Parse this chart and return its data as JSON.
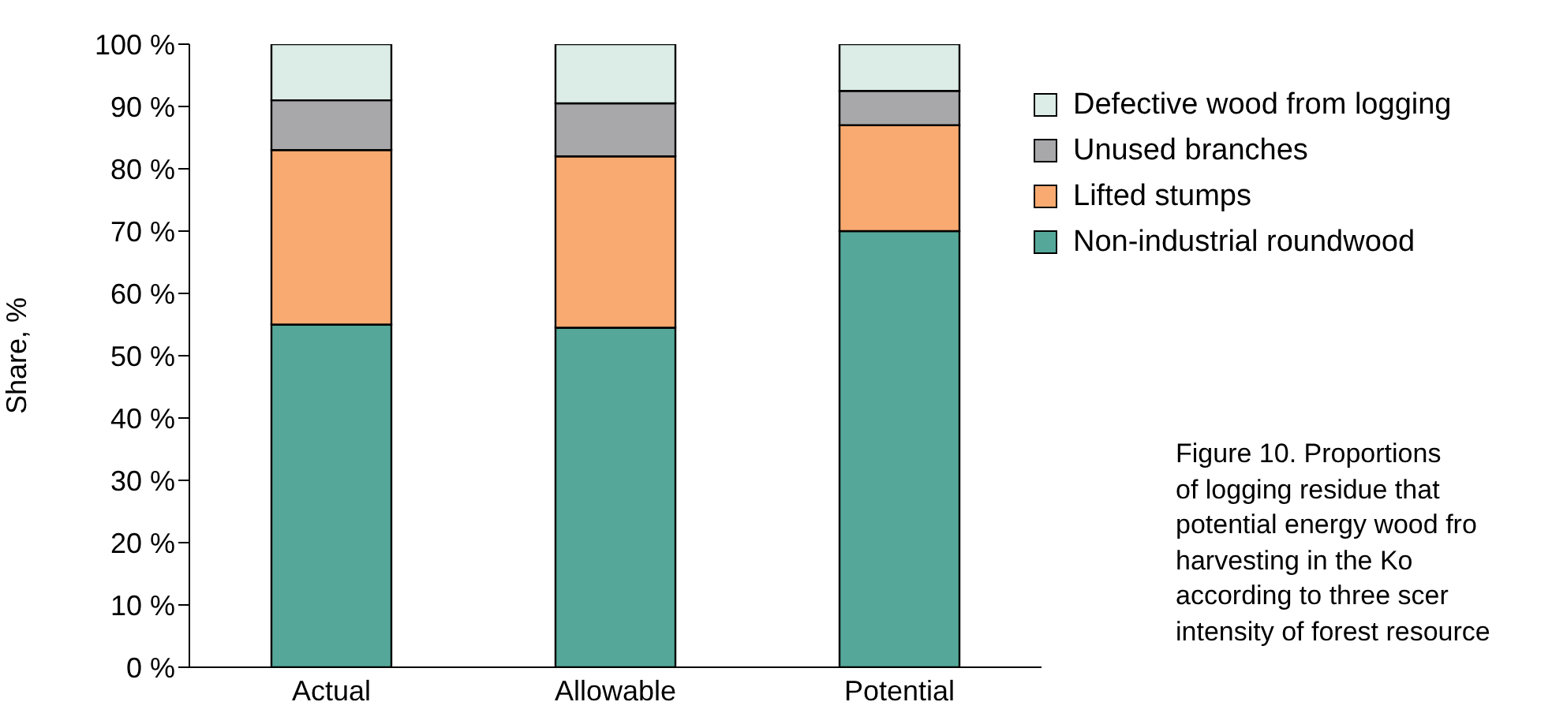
{
  "chart_data": {
    "type": "bar",
    "stacked": true,
    "categories": [
      "Actual",
      "Allowable",
      "Potential"
    ],
    "series": [
      {
        "name": "Non-industrial roundwood",
        "color": "#55a899",
        "values": [
          55,
          54.5,
          70
        ]
      },
      {
        "name": "Lifted stumps",
        "color": "#f8aa70",
        "values": [
          28,
          27.5,
          17
        ]
      },
      {
        "name": "Unused branches",
        "color": "#a8a8ab",
        "values": [
          8,
          8.5,
          5.5
        ]
      },
      {
        "name": "Defective wood from logging",
        "color": "#dcece6",
        "values": [
          9,
          9.5,
          7.5
        ]
      }
    ],
    "ylabel": "Share, %",
    "ylim": [
      0,
      100
    ],
    "yticks": [
      {
        "value": 0,
        "label": "0 %"
      },
      {
        "value": 10,
        "label": "10 %"
      },
      {
        "value": 20,
        "label": "20 %"
      },
      {
        "value": 30,
        "label": "30 %"
      },
      {
        "value": 40,
        "label": "40 %"
      },
      {
        "value": 50,
        "label": "50 %"
      },
      {
        "value": 60,
        "label": "60 %"
      },
      {
        "value": 70,
        "label": "70 %"
      },
      {
        "value": 80,
        "label": "80 %"
      },
      {
        "value": 90,
        "label": "90 %"
      },
      {
        "value": 100,
        "label": "100 %"
      }
    ],
    "legend": "right",
    "grid": false,
    "annotations": [
      "Figure 10. Proportions",
      "of logging residue that",
      "potential energy wood fro",
      "harvesting in the Ko",
      "according to three scer",
      "intensity of forest resource"
    ]
  }
}
